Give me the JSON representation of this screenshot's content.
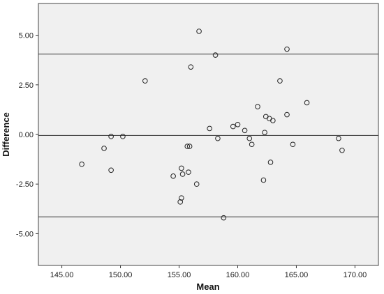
{
  "chart_data": {
    "type": "scatter",
    "title": "",
    "xlabel": "Mean",
    "ylabel": "Difference",
    "xlim": [
      143.0,
      172.0
    ],
    "ylim": [
      -6.6,
      6.6
    ],
    "x_ticks": [
      145,
      150,
      155,
      160,
      165,
      170
    ],
    "x_tick_labels": [
      "145.00",
      "150.00",
      "155.00",
      "160.00",
      "165.00",
      "170.00"
    ],
    "y_ticks": [
      5,
      2.5,
      0,
      -2.5,
      -5
    ],
    "y_tick_labels": [
      "5.00",
      "2.50",
      "0.00",
      "-2.50",
      "-5.00"
    ],
    "reference_lines": [
      4.05,
      -0.05,
      -4.15
    ],
    "grid": false,
    "background": "#f0f0f0",
    "marker_color": "#222222",
    "points": [
      {
        "x": 146.7,
        "y": -1.5
      },
      {
        "x": 148.6,
        "y": -0.7
      },
      {
        "x": 149.2,
        "y": -0.1
      },
      {
        "x": 149.2,
        "y": -1.8
      },
      {
        "x": 150.2,
        "y": -0.1
      },
      {
        "x": 152.1,
        "y": 2.7
      },
      {
        "x": 154.5,
        "y": -2.1
      },
      {
        "x": 155.1,
        "y": -3.4
      },
      {
        "x": 155.2,
        "y": -3.2
      },
      {
        "x": 155.2,
        "y": -1.7
      },
      {
        "x": 155.3,
        "y": -2.0
      },
      {
        "x": 155.7,
        "y": -0.6
      },
      {
        "x": 155.8,
        "y": -1.9
      },
      {
        "x": 155.9,
        "y": -0.6
      },
      {
        "x": 156.0,
        "y": 3.4
      },
      {
        "x": 156.5,
        "y": -2.5
      },
      {
        "x": 156.7,
        "y": 5.2
      },
      {
        "x": 157.6,
        "y": 0.3
      },
      {
        "x": 158.1,
        "y": 4.0
      },
      {
        "x": 158.3,
        "y": -0.2
      },
      {
        "x": 158.8,
        "y": -4.2
      },
      {
        "x": 159.6,
        "y": 0.4
      },
      {
        "x": 160.0,
        "y": 0.5
      },
      {
        "x": 160.6,
        "y": 0.2
      },
      {
        "x": 161.0,
        "y": -0.2
      },
      {
        "x": 161.2,
        "y": -0.5
      },
      {
        "x": 161.7,
        "y": 1.4
      },
      {
        "x": 162.2,
        "y": -2.3
      },
      {
        "x": 162.3,
        "y": 0.1
      },
      {
        "x": 162.4,
        "y": 0.9
      },
      {
        "x": 162.7,
        "y": 0.8
      },
      {
        "x": 162.8,
        "y": -1.4
      },
      {
        "x": 163.0,
        "y": 0.7
      },
      {
        "x": 163.6,
        "y": 2.7
      },
      {
        "x": 164.2,
        "y": 4.3
      },
      {
        "x": 164.2,
        "y": 1.0
      },
      {
        "x": 164.7,
        "y": -0.5
      },
      {
        "x": 165.9,
        "y": 1.6
      },
      {
        "x": 168.6,
        "y": -0.2
      },
      {
        "x": 168.9,
        "y": -0.8
      }
    ]
  }
}
